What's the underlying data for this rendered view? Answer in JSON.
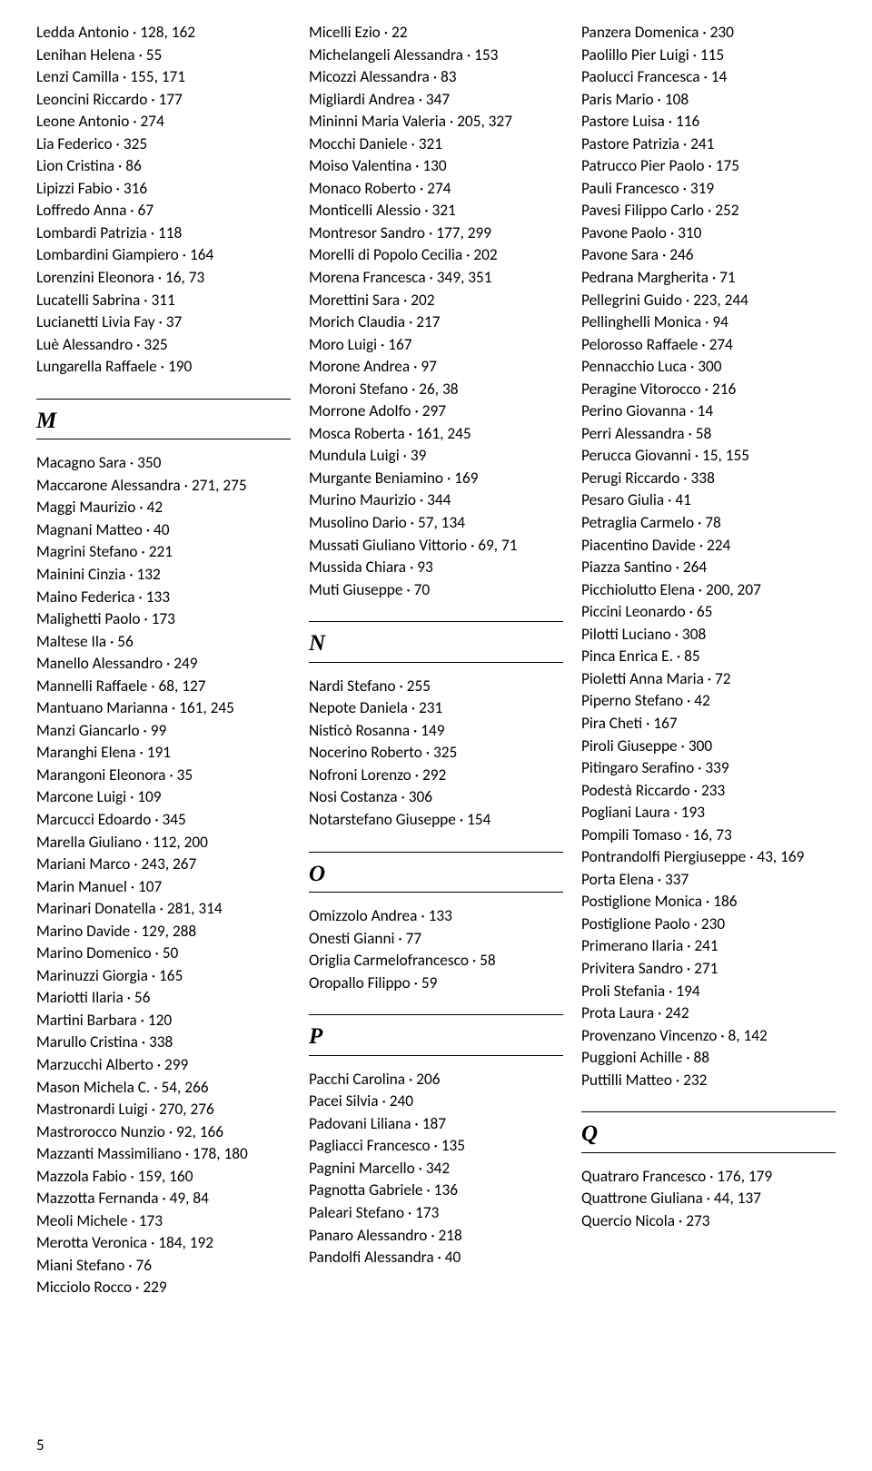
{
  "page_number": "5",
  "columns": [
    [
      {
        "t": "entry",
        "v": "Ledda Antonio · 128, 162"
      },
      {
        "t": "entry",
        "v": "Lenihan Helena · 55"
      },
      {
        "t": "entry",
        "v": "Lenzi Camilla · 155, 171"
      },
      {
        "t": "entry",
        "v": "Leoncini Riccardo · 177"
      },
      {
        "t": "entry",
        "v": "Leone Antonio · 274"
      },
      {
        "t": "entry",
        "v": "Lia Federico · 325"
      },
      {
        "t": "entry",
        "v": "Lion Cristina · 86"
      },
      {
        "t": "entry",
        "v": "Lipizzi Fabio · 316"
      },
      {
        "t": "entry",
        "v": "Loffredo Anna · 67"
      },
      {
        "t": "entry",
        "v": "Lombardi Patrizia · 118"
      },
      {
        "t": "entry",
        "v": "Lombardini Giampiero · 164"
      },
      {
        "t": "entry",
        "v": "Lorenzini Eleonora · 16, 73"
      },
      {
        "t": "entry",
        "v": "Lucatelli Sabrina · 311"
      },
      {
        "t": "entry",
        "v": "Lucianetti Livia Fay · 37"
      },
      {
        "t": "entry",
        "v": "Luè Alessandro · 325"
      },
      {
        "t": "entry",
        "v": "Lungarella Raffaele · 190"
      },
      {
        "t": "heading",
        "v": "M"
      },
      {
        "t": "entry",
        "v": "Macagno Sara · 350"
      },
      {
        "t": "entry",
        "v": "Maccarone Alessandra · 271, 275"
      },
      {
        "t": "entry",
        "v": "Maggi Maurizio · 42"
      },
      {
        "t": "entry",
        "v": "Magnani Matteo · 40"
      },
      {
        "t": "entry",
        "v": "Magrini Stefano · 221"
      },
      {
        "t": "entry",
        "v": "Mainini Cinzia · 132"
      },
      {
        "t": "entry",
        "v": "Maino Federica · 133"
      },
      {
        "t": "entry",
        "v": "Malighetti Paolo · 173"
      },
      {
        "t": "entry",
        "v": "Maltese Ila · 56"
      },
      {
        "t": "entry",
        "v": "Manello Alessandro · 249"
      },
      {
        "t": "entry",
        "v": "Mannelli Raffaele · 68, 127"
      },
      {
        "t": "entry",
        "v": "Mantuano Marianna · 161, 245"
      },
      {
        "t": "entry",
        "v": "Manzi Giancarlo · 99"
      },
      {
        "t": "entry",
        "v": "Maranghi Elena · 191"
      },
      {
        "t": "entry",
        "v": "Marangoni Eleonora · 35"
      },
      {
        "t": "entry",
        "v": "Marcone Luigi · 109"
      },
      {
        "t": "entry",
        "v": "Marcucci Edoardo · 345"
      },
      {
        "t": "entry",
        "v": "Marella Giuliano · 112, 200"
      },
      {
        "t": "entry",
        "v": "Mariani Marco · 243, 267"
      },
      {
        "t": "entry",
        "v": "Marin Manuel · 107"
      },
      {
        "t": "entry",
        "v": "Marinari Donatella · 281, 314"
      },
      {
        "t": "entry",
        "v": "Marino Davide · 129, 288"
      },
      {
        "t": "entry",
        "v": "Marino Domenico · 50"
      },
      {
        "t": "entry",
        "v": "Marinuzzi Giorgia · 165"
      },
      {
        "t": "entry",
        "v": "Mariotti Ilaria · 56"
      },
      {
        "t": "entry",
        "v": "Martini Barbara · 120"
      },
      {
        "t": "entry",
        "v": "Marullo Cristina · 338"
      },
      {
        "t": "entry",
        "v": "Marzucchi Alberto · 299"
      },
      {
        "t": "entry",
        "v": "Mason Michela C. · 54, 266"
      },
      {
        "t": "entry",
        "v": "Mastronardi Luigi · 270, 276"
      },
      {
        "t": "entry",
        "v": "Mastrorocco Nunzio · 92, 166"
      },
      {
        "t": "entry",
        "v": "Mazzanti Massimiliano · 178, 180"
      },
      {
        "t": "entry",
        "v": "Mazzola Fabio · 159, 160"
      },
      {
        "t": "entry",
        "v": "Mazzotta Fernanda · 49, 84"
      },
      {
        "t": "entry",
        "v": "Meoli Michele · 173"
      },
      {
        "t": "entry",
        "v": "Merotta Veronica · 184, 192"
      },
      {
        "t": "entry",
        "v": "Miani Stefano · 76"
      },
      {
        "t": "entry",
        "v": "Micciolo Rocco · 229"
      }
    ],
    [
      {
        "t": "entry",
        "v": "Micelli Ezio · 22"
      },
      {
        "t": "entry",
        "v": "Michelangeli Alessandra · 153"
      },
      {
        "t": "entry",
        "v": "Micozzi Alessandra · 83"
      },
      {
        "t": "entry",
        "v": "Migliardi Andrea · 347"
      },
      {
        "t": "entry",
        "v": "Mininni Maria Valeria · 205, 327"
      },
      {
        "t": "entry",
        "v": "Mocchi Daniele · 321"
      },
      {
        "t": "entry",
        "v": "Moiso Valentina · 130"
      },
      {
        "t": "entry",
        "v": "Monaco Roberto · 274"
      },
      {
        "t": "entry",
        "v": "Monticelli Alessio · 321"
      },
      {
        "t": "entry",
        "v": "Montresor Sandro · 177, 299"
      },
      {
        "t": "entry",
        "v": "Morelli di Popolo Cecilia · 202"
      },
      {
        "t": "entry",
        "v": "Morena Francesca · 349, 351"
      },
      {
        "t": "entry",
        "v": "Morettini Sara · 202"
      },
      {
        "t": "entry",
        "v": "Morich Claudia · 217"
      },
      {
        "t": "entry",
        "v": "Moro Luigi · 167"
      },
      {
        "t": "entry",
        "v": "Morone Andrea · 97"
      },
      {
        "t": "entry",
        "v": "Moroni Stefano · 26, 38"
      },
      {
        "t": "entry",
        "v": "Morrone Adolfo · 297"
      },
      {
        "t": "entry",
        "v": "Mosca Roberta · 161, 245"
      },
      {
        "t": "entry",
        "v": "Mundula Luigi · 39"
      },
      {
        "t": "entry",
        "v": "Murgante Beniamino · 169"
      },
      {
        "t": "entry",
        "v": "Murino Maurizio · 344"
      },
      {
        "t": "entry",
        "v": "Musolino Dario · 57, 134"
      },
      {
        "t": "entry",
        "v": "Mussati Giuliano Vittorio · 69, 71"
      },
      {
        "t": "entry",
        "v": "Mussida Chiara · 93"
      },
      {
        "t": "entry",
        "v": "Muti Giuseppe · 70"
      },
      {
        "t": "heading",
        "v": "N"
      },
      {
        "t": "entry",
        "v": "Nardi Stefano · 255"
      },
      {
        "t": "entry",
        "v": "Nepote Daniela · 231"
      },
      {
        "t": "entry",
        "v": "Nisticò Rosanna · 149"
      },
      {
        "t": "entry",
        "v": "Nocerino Roberto · 325"
      },
      {
        "t": "entry",
        "v": "Nofroni Lorenzo · 292"
      },
      {
        "t": "entry",
        "v": "Nosi Costanza · 306"
      },
      {
        "t": "entry",
        "v": "Notarstefano Giuseppe · 154"
      },
      {
        "t": "heading",
        "v": "O"
      },
      {
        "t": "entry",
        "v": "Omizzolo Andrea · 133"
      },
      {
        "t": "entry",
        "v": "Onesti Gianni · 77"
      },
      {
        "t": "entry",
        "v": "Origlia Carmelofrancesco · 58"
      },
      {
        "t": "entry",
        "v": "Oropallo Filippo · 59"
      },
      {
        "t": "heading",
        "v": "P"
      },
      {
        "t": "entry",
        "v": "Pacchi Carolina · 206"
      },
      {
        "t": "entry",
        "v": "Pacei Silvia · 240"
      },
      {
        "t": "entry",
        "v": "Padovani Liliana · 187"
      },
      {
        "t": "entry",
        "v": "Pagliacci Francesco · 135"
      },
      {
        "t": "entry",
        "v": "Pagnini Marcello · 342"
      },
      {
        "t": "entry",
        "v": "Pagnotta Gabriele · 136"
      },
      {
        "t": "entry",
        "v": "Paleari Stefano · 173"
      },
      {
        "t": "entry",
        "v": "Panaro Alessandro · 218"
      },
      {
        "t": "entry",
        "v": "Pandolfi Alessandra · 40"
      }
    ],
    [
      {
        "t": "entry",
        "v": "Panzera Domenica · 230"
      },
      {
        "t": "entry",
        "v": "Paolillo Pier Luigi · 115"
      },
      {
        "t": "entry",
        "v": "Paolucci Francesca · 14"
      },
      {
        "t": "entry",
        "v": "Paris Mario · 108"
      },
      {
        "t": "entry",
        "v": "Pastore Luisa · 116"
      },
      {
        "t": "entry",
        "v": "Pastore Patrizia · 241"
      },
      {
        "t": "entry",
        "v": "Patrucco Pier Paolo · 175"
      },
      {
        "t": "entry",
        "v": "Pauli Francesco · 319"
      },
      {
        "t": "entry",
        "v": "Pavesi Filippo Carlo · 252"
      },
      {
        "t": "entry",
        "v": "Pavone Paolo · 310"
      },
      {
        "t": "entry",
        "v": "Pavone Sara · 246"
      },
      {
        "t": "entry",
        "v": "Pedrana Margherita · 71"
      },
      {
        "t": "entry",
        "v": "Pellegrini Guido · 223, 244"
      },
      {
        "t": "entry",
        "v": "Pellinghelli Monica · 94"
      },
      {
        "t": "entry",
        "v": "Pelorosso Raffaele · 274"
      },
      {
        "t": "entry",
        "v": "Pennacchio Luca · 300"
      },
      {
        "t": "entry",
        "v": "Peragine Vitorocco · 216"
      },
      {
        "t": "entry",
        "v": "Perino Giovanna · 14"
      },
      {
        "t": "entry",
        "v": "Perri Alessandra · 58"
      },
      {
        "t": "entry",
        "v": "Perucca Giovanni · 15, 155"
      },
      {
        "t": "entry",
        "v": "Perugi Riccardo · 338"
      },
      {
        "t": "entry",
        "v": "Pesaro Giulia · 41"
      },
      {
        "t": "entry",
        "v": "Petraglia Carmelo · 78"
      },
      {
        "t": "entry",
        "v": "Piacentino Davide · 224"
      },
      {
        "t": "entry",
        "v": "Piazza Santino · 264"
      },
      {
        "t": "entry",
        "v": "Picchiolutto Elena · 200, 207"
      },
      {
        "t": "entry",
        "v": "Piccini Leonardo · 65"
      },
      {
        "t": "entry",
        "v": "Pilotti Luciano · 308"
      },
      {
        "t": "entry",
        "v": "Pinca Enrica E. · 85"
      },
      {
        "t": "entry",
        "v": "Pioletti Anna Maria · 72"
      },
      {
        "t": "entry",
        "v": "Piperno Stefano · 42"
      },
      {
        "t": "entry",
        "v": "Pira Cheti · 167"
      },
      {
        "t": "entry",
        "v": "Piroli Giuseppe · 300"
      },
      {
        "t": "entry",
        "v": "Pitingaro Serafino · 339"
      },
      {
        "t": "entry",
        "v": "Podestà Riccardo · 233"
      },
      {
        "t": "entry",
        "v": "Pogliani Laura · 193"
      },
      {
        "t": "entry",
        "v": "Pompili Tomaso · 16, 73"
      },
      {
        "t": "entry",
        "v": "Pontrandolfi Piergiuseppe · 43, 169",
        "wrap": true
      },
      {
        "t": "entry",
        "v": "Porta Elena · 337"
      },
      {
        "t": "entry",
        "v": "Postiglione Monica · 186"
      },
      {
        "t": "entry",
        "v": "Postiglione Paolo · 230"
      },
      {
        "t": "entry",
        "v": "Primerano Ilaria · 241"
      },
      {
        "t": "entry",
        "v": "Privitera Sandro · 271"
      },
      {
        "t": "entry",
        "v": "Proli Stefania · 194"
      },
      {
        "t": "entry",
        "v": "Prota Laura · 242"
      },
      {
        "t": "entry",
        "v": "Provenzano Vincenzo · 8, 142"
      },
      {
        "t": "entry",
        "v": "Puggioni Achille · 88"
      },
      {
        "t": "entry",
        "v": "Puttilli Matteo · 232"
      },
      {
        "t": "heading",
        "v": "Q"
      },
      {
        "t": "entry",
        "v": "Quatraro Francesco · 176, 179"
      },
      {
        "t": "entry",
        "v": "Quattrone Giuliana · 44, 137"
      },
      {
        "t": "entry",
        "v": "Quercio Nicola · 273"
      }
    ]
  ]
}
